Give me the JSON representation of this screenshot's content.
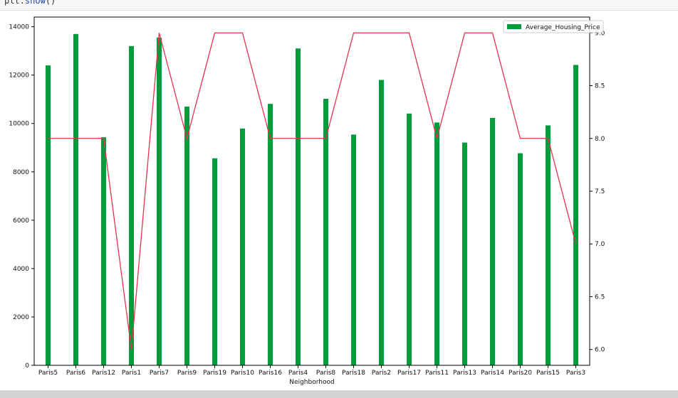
{
  "code": {
    "prefix": "plt.",
    "call": "show",
    "suffix": "()"
  },
  "chart_data": {
    "type": "bar",
    "title": "",
    "xlabel": "Neighborhood",
    "ylabel": "",
    "categories": [
      "Paris5",
      "Paris6",
      "Paris12",
      "Paris1",
      "Paris7",
      "Paris9",
      "Paris19",
      "Paris10",
      "Paris16",
      "Paris4",
      "Paris8",
      "Paris18",
      "Paris2",
      "Paris17",
      "Paris11",
      "Paris13",
      "Paris14",
      "Paris20",
      "Paris15",
      "Paris3"
    ],
    "series": [
      {
        "name": "Average_Housing_Price",
        "axis": "left",
        "kind": "bar",
        "color": "#009c3b",
        "values": [
          12400,
          13700,
          9430,
          13200,
          13550,
          10700,
          8560,
          9790,
          10810,
          13100,
          11020,
          9540,
          11800,
          10410,
          10040,
          9210,
          10230,
          8770,
          9920,
          12420
        ]
      },
      {
        "axis": "right",
        "kind": "line",
        "color": "#e8324a",
        "values": [
          8,
          8,
          8,
          6,
          9,
          8,
          9,
          9,
          8,
          8,
          8,
          9,
          9,
          9,
          8,
          9,
          9,
          8,
          8,
          7
        ]
      }
    ],
    "ylim_left": [
      0,
      14400
    ],
    "yticks_left": [
      0,
      2000,
      4000,
      6000,
      8000,
      10000,
      12000,
      14000
    ],
    "ylim_right": [
      5.85,
      9.15
    ],
    "yticks_right": [
      6.0,
      6.5,
      7.0,
      7.5,
      8.0,
      8.5,
      9.0
    ],
    "grid": false,
    "legend_position": "top-right"
  }
}
